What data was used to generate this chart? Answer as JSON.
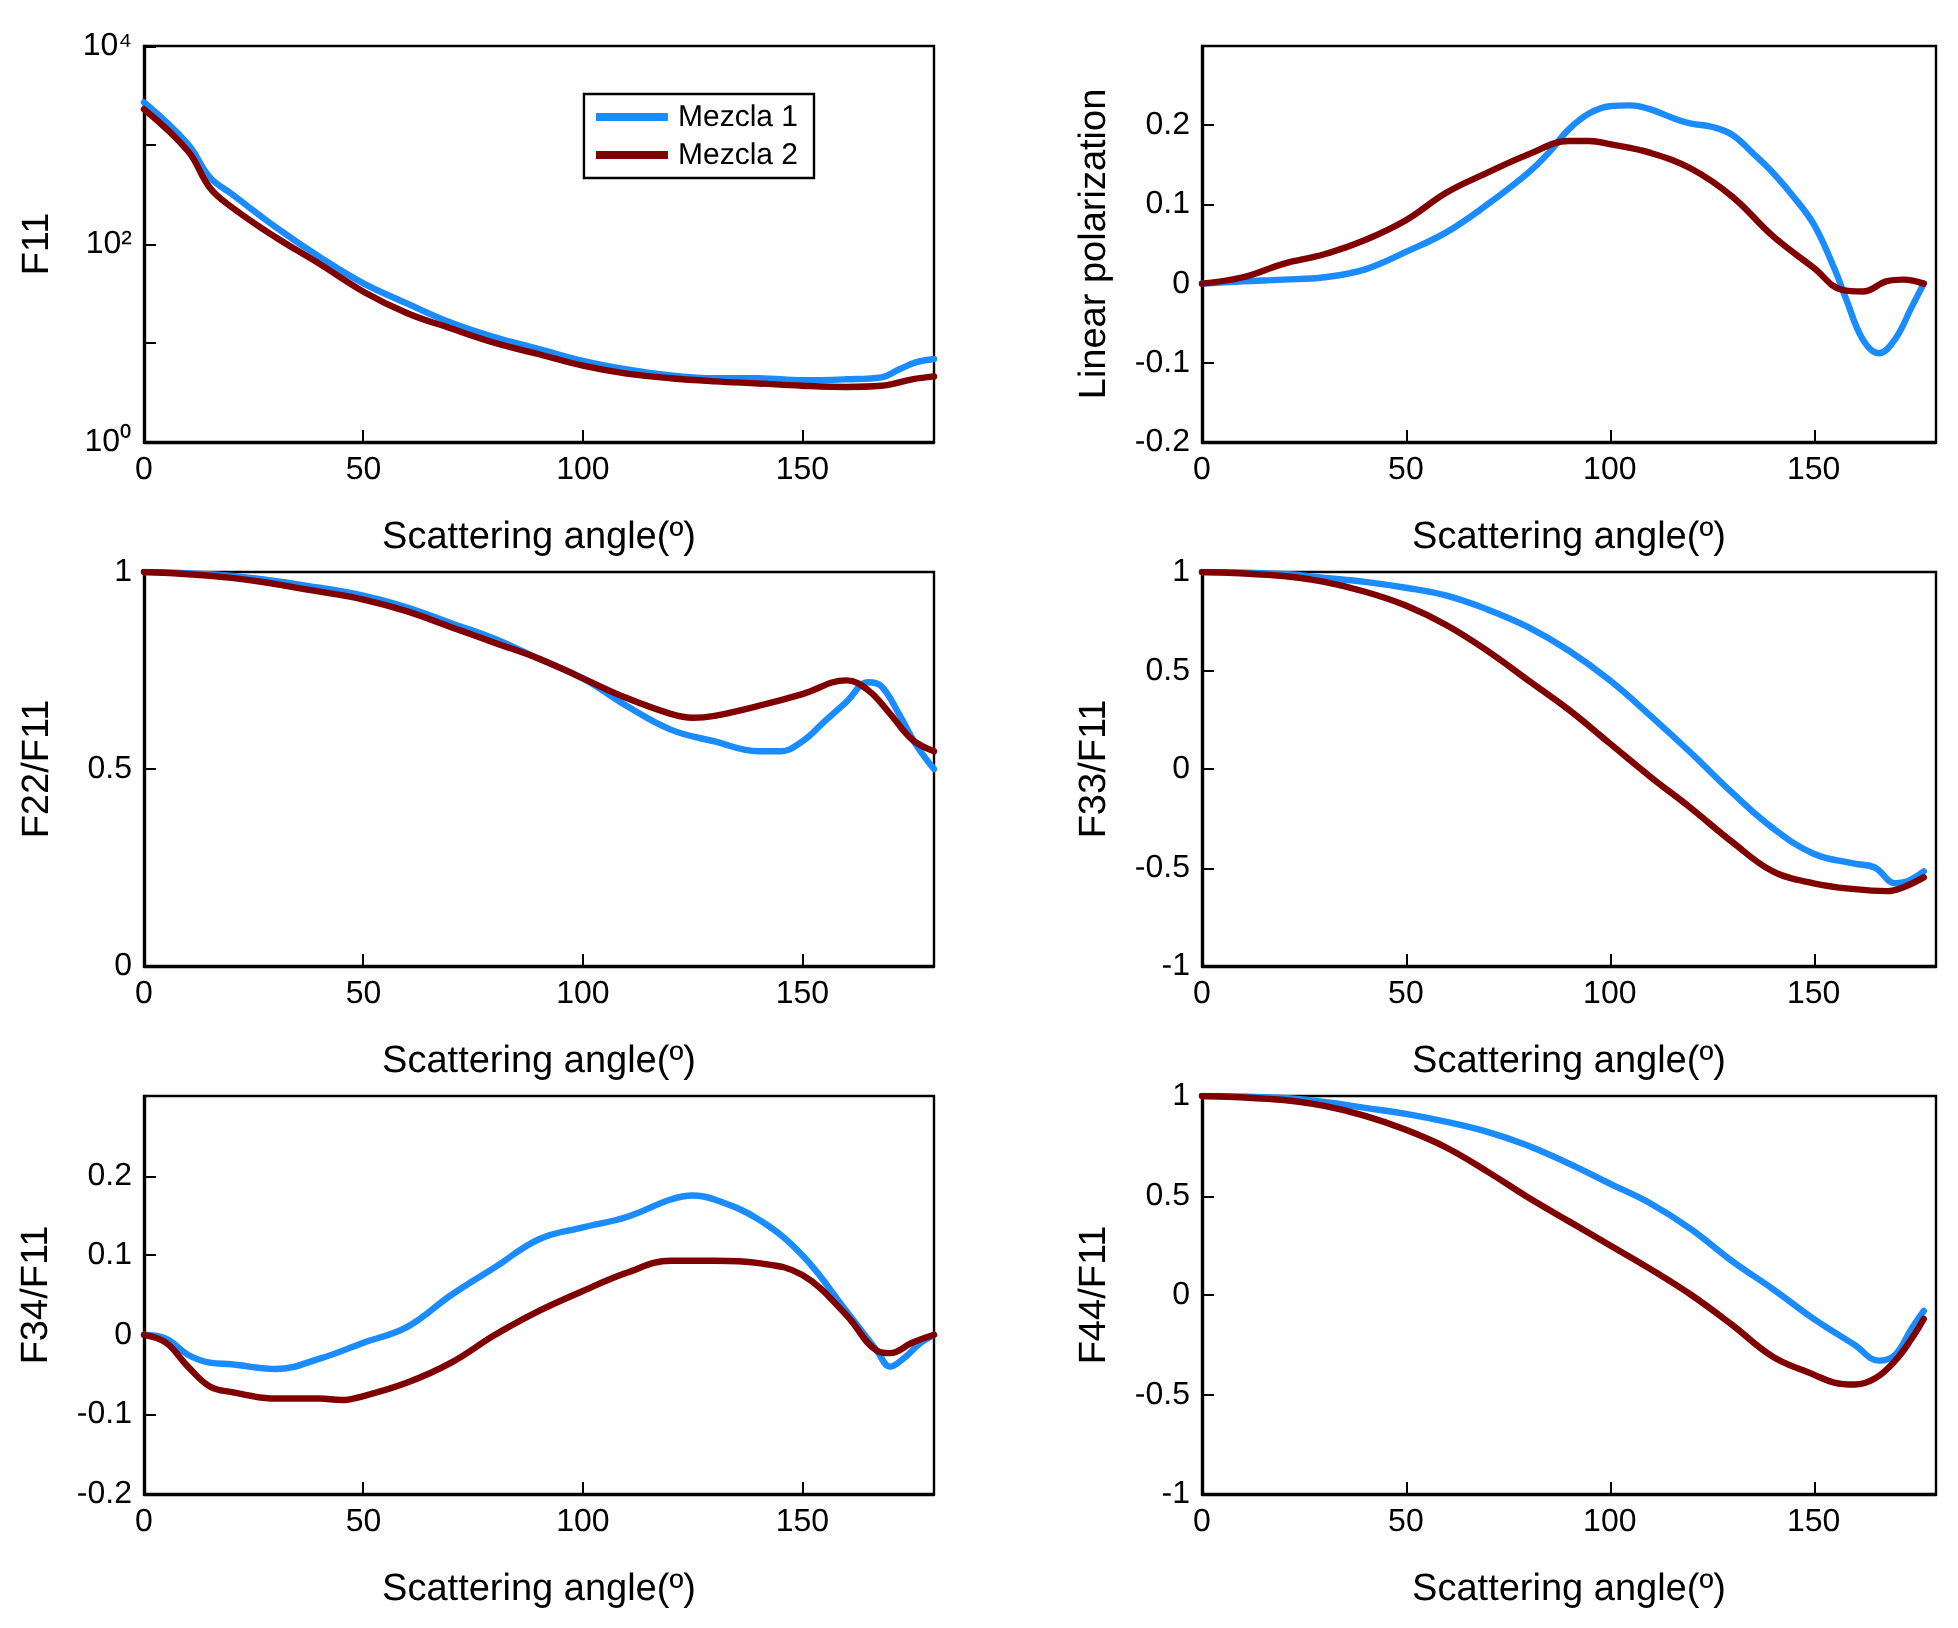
{
  "chart_data": [
    {
      "type": "line",
      "xlabel": "Scattering angle(º)",
      "ylabel": "F11",
      "log": "y",
      "legend": "top right",
      "grid": false,
      "marker": "none",
      "line_style": "solid",
      "xlim": [
        0,
        180
      ],
      "xticks": [
        0,
        50,
        100,
        150
      ],
      "ylim": [
        1,
        10000
      ],
      "yticks": [
        {
          "value": 1,
          "label": "10⁰"
        },
        {
          "value": 10,
          "label": null
        },
        {
          "value": 100,
          "label": "10²"
        },
        {
          "value": 1000,
          "label": null
        },
        {
          "value": 10000,
          "label": "10⁴"
        }
      ],
      "series": [
        {
          "name": "Mezcla 1",
          "color": "#1a8cff",
          "x": [
            0,
            10,
            15,
            20,
            30,
            40,
            50,
            60,
            70,
            80,
            90,
            100,
            110,
            120,
            130,
            140,
            150,
            160,
            168,
            172,
            176,
            180
          ],
          "values": [
            2700,
            1020,
            470,
            320,
            148,
            74,
            40,
            25,
            16,
            11.4,
            8.7,
            6.6,
            5.4,
            4.7,
            4.4,
            4.4,
            4.2,
            4.3,
            4.5,
            5.4,
            6.4,
            6.9
          ]
        },
        {
          "name": "Mezcla 2",
          "color": "#800000",
          "x": [
            0,
            10,
            15,
            20,
            30,
            40,
            50,
            60,
            70,
            80,
            90,
            100,
            110,
            120,
            130,
            140,
            150,
            160,
            168,
            175,
            180
          ],
          "values": [
            2300,
            870,
            370,
            235,
            117,
            63,
            33,
            20,
            14,
            10,
            7.7,
            5.9,
            4.9,
            4.4,
            4.1,
            3.9,
            3.7,
            3.6,
            3.7,
            4.3,
            4.6
          ]
        }
      ]
    },
    {
      "type": "line",
      "xlabel": "Scattering angle(º)",
      "ylabel": "Linear polarization",
      "grid": false,
      "marker": "none",
      "line_style": "solid",
      "xlim": [
        0,
        180
      ],
      "xticks": [
        0,
        50,
        100,
        150
      ],
      "ylim": [
        -0.2,
        0.3
      ],
      "yticks": [
        -0.2,
        -0.1,
        0,
        0.1,
        0.2
      ],
      "series": [
        {
          "color": "#1a8cff",
          "x": [
            0,
            10,
            20,
            30,
            40,
            50,
            60,
            70,
            80,
            85,
            90,
            95,
            100,
            105,
            110,
            115,
            120,
            125,
            130,
            135,
            140,
            145,
            150,
            155,
            158,
            162,
            166,
            170,
            174,
            177
          ],
          "values": [
            0,
            0.003,
            0.005,
            0.008,
            0.018,
            0.04,
            0.065,
            0.1,
            0.14,
            0.165,
            0.195,
            0.215,
            0.224,
            0.225,
            0.22,
            0.21,
            0.202,
            0.198,
            0.188,
            0.165,
            0.14,
            0.11,
            0.075,
            0.02,
            -0.02,
            -0.07,
            -0.088,
            -0.07,
            -0.03,
            0
          ]
        },
        {
          "color": "#800000",
          "x": [
            0,
            10,
            20,
            30,
            40,
            50,
            60,
            70,
            80,
            90,
            95,
            100,
            110,
            120,
            130,
            140,
            150,
            157,
            162,
            168,
            172,
            177
          ],
          "values": [
            0,
            0.008,
            0.025,
            0.037,
            0.055,
            0.08,
            0.115,
            0.14,
            0.163,
            0.18,
            0.18,
            0.176,
            0.165,
            0.145,
            0.11,
            0.06,
            0.02,
            -0.008,
            -0.01,
            0.003,
            0.005,
            0
          ]
        }
      ]
    },
    {
      "type": "line",
      "xlabel": "Scattering angle(º)",
      "ylabel": "F22/F11",
      "grid": false,
      "marker": "none",
      "line_style": "solid",
      "xlim": [
        0,
        180
      ],
      "xticks": [
        0,
        50,
        100,
        150
      ],
      "ylim": [
        0,
        1
      ],
      "yticks": [
        0,
        0.5,
        1
      ],
      "series": [
        {
          "color": "#1a8cff",
          "x": [
            0,
            20,
            40,
            50,
            60,
            70,
            80,
            90,
            100,
            110,
            120,
            130,
            140,
            145,
            150,
            155,
            160,
            165,
            168,
            172,
            176,
            180
          ],
          "values": [
            1,
            0.99,
            0.96,
            0.94,
            0.91,
            0.87,
            0.83,
            0.78,
            0.73,
            0.66,
            0.6,
            0.57,
            0.545,
            0.545,
            0.57,
            0.62,
            0.67,
            0.72,
            0.71,
            0.64,
            0.56,
            0.5
          ]
        },
        {
          "color": "#800000",
          "x": [
            0,
            20,
            40,
            50,
            60,
            70,
            80,
            90,
            100,
            110,
            120,
            125,
            130,
            140,
            150,
            160,
            165,
            170,
            175,
            180
          ],
          "values": [
            1,
            0.985,
            0.95,
            0.93,
            0.9,
            0.86,
            0.82,
            0.78,
            0.73,
            0.68,
            0.64,
            0.63,
            0.635,
            0.66,
            0.69,
            0.725,
            0.7,
            0.64,
            0.575,
            0.545
          ]
        }
      ]
    },
    {
      "type": "line",
      "xlabel": "Scattering angle(º)",
      "ylabel": "F33/F11",
      "grid": false,
      "marker": "none",
      "line_style": "solid",
      "xlim": [
        0,
        180
      ],
      "xticks": [
        0,
        50,
        100,
        150
      ],
      "ylim": [
        -1,
        1
      ],
      "yticks": [
        -1,
        -0.5,
        0,
        0.5,
        1
      ],
      "series": [
        {
          "color": "#1a8cff",
          "x": [
            0,
            20,
            30,
            40,
            50,
            60,
            70,
            80,
            90,
            100,
            110,
            120,
            130,
            140,
            150,
            160,
            165,
            170,
            173,
            177
          ],
          "values": [
            1,
            0.99,
            0.97,
            0.95,
            0.92,
            0.88,
            0.81,
            0.72,
            0.6,
            0.45,
            0.27,
            0.08,
            -0.12,
            -0.3,
            -0.43,
            -0.48,
            -0.5,
            -0.58,
            -0.57,
            -0.52
          ]
        },
        {
          "color": "#800000",
          "x": [
            0,
            20,
            30,
            40,
            50,
            60,
            70,
            80,
            90,
            100,
            110,
            120,
            130,
            140,
            150,
            160,
            168,
            172,
            177
          ],
          "values": [
            1,
            0.98,
            0.95,
            0.9,
            0.83,
            0.73,
            0.6,
            0.45,
            0.3,
            0.13,
            -0.04,
            -0.2,
            -0.37,
            -0.52,
            -0.58,
            -0.61,
            -0.62,
            -0.6,
            -0.55
          ]
        }
      ]
    },
    {
      "type": "line",
      "xlabel": "Scattering angle(º)",
      "ylabel": "F34/F11",
      "grid": false,
      "marker": "none",
      "line_style": "solid",
      "xlim": [
        0,
        180
      ],
      "xticks": [
        0,
        50,
        100,
        150
      ],
      "ylim": [
        -0.2,
        0.3
      ],
      "yticks": [
        -0.2,
        -0.1,
        0,
        0.1,
        0.2
      ],
      "series": [
        {
          "color": "#1a8cff",
          "x": [
            0,
            5,
            10,
            15,
            20,
            30,
            40,
            50,
            60,
            70,
            80,
            90,
            100,
            110,
            120,
            125,
            130,
            140,
            150,
            160,
            167,
            170,
            173,
            177,
            180
          ],
          "values": [
            0,
            -0.005,
            -0.025,
            -0.035,
            -0.037,
            -0.043,
            -0.03,
            -0.01,
            0.01,
            0.05,
            0.085,
            0.12,
            0.135,
            0.148,
            0.17,
            0.175,
            0.17,
            0.145,
            0.1,
            0.03,
            -0.02,
            -0.04,
            -0.03,
            -0.01,
            0
          ]
        },
        {
          "color": "#800000",
          "x": [
            0,
            5,
            10,
            15,
            20,
            30,
            40,
            45,
            50,
            60,
            70,
            80,
            90,
            100,
            110,
            120,
            130,
            140,
            150,
            160,
            167,
            170,
            175,
            180
          ],
          "values": [
            0,
            -0.01,
            -0.04,
            -0.065,
            -0.072,
            -0.08,
            -0.08,
            -0.082,
            -0.077,
            -0.06,
            -0.035,
            0,
            0.03,
            0.055,
            0.078,
            0.093,
            0.093,
            0.09,
            0.075,
            0.025,
            -0.02,
            -0.023,
            -0.01,
            0
          ]
        }
      ]
    },
    {
      "type": "line",
      "xlabel": "Scattering angle(º)",
      "ylabel": "F44/F11",
      "grid": false,
      "marker": "none",
      "line_style": "solid",
      "xlim": [
        0,
        180
      ],
      "xticks": [
        0,
        50,
        100,
        150
      ],
      "ylim": [
        -1,
        1
      ],
      "yticks": [
        -1,
        -0.5,
        0,
        0.5,
        1
      ],
      "series": [
        {
          "color": "#1a8cff",
          "x": [
            0,
            20,
            30,
            40,
            50,
            60,
            70,
            80,
            90,
            100,
            110,
            120,
            130,
            140,
            150,
            160,
            166,
            170,
            174,
            177
          ],
          "values": [
            1,
            0.99,
            0.97,
            0.94,
            0.91,
            0.87,
            0.82,
            0.75,
            0.66,
            0.56,
            0.46,
            0.33,
            0.17,
            0.03,
            -0.12,
            -0.25,
            -0.33,
            -0.3,
            -0.17,
            -0.08
          ]
        },
        {
          "color": "#800000",
          "x": [
            0,
            20,
            30,
            40,
            50,
            60,
            70,
            80,
            90,
            100,
            110,
            120,
            130,
            140,
            150,
            155,
            160,
            165,
            170,
            174,
            177
          ],
          "values": [
            1,
            0.98,
            0.95,
            0.9,
            0.83,
            0.74,
            0.62,
            0.49,
            0.37,
            0.25,
            0.13,
            0,
            -0.15,
            -0.31,
            -0.4,
            -0.44,
            -0.45,
            -0.42,
            -0.33,
            -0.22,
            -0.12
          ]
        }
      ]
    }
  ]
}
